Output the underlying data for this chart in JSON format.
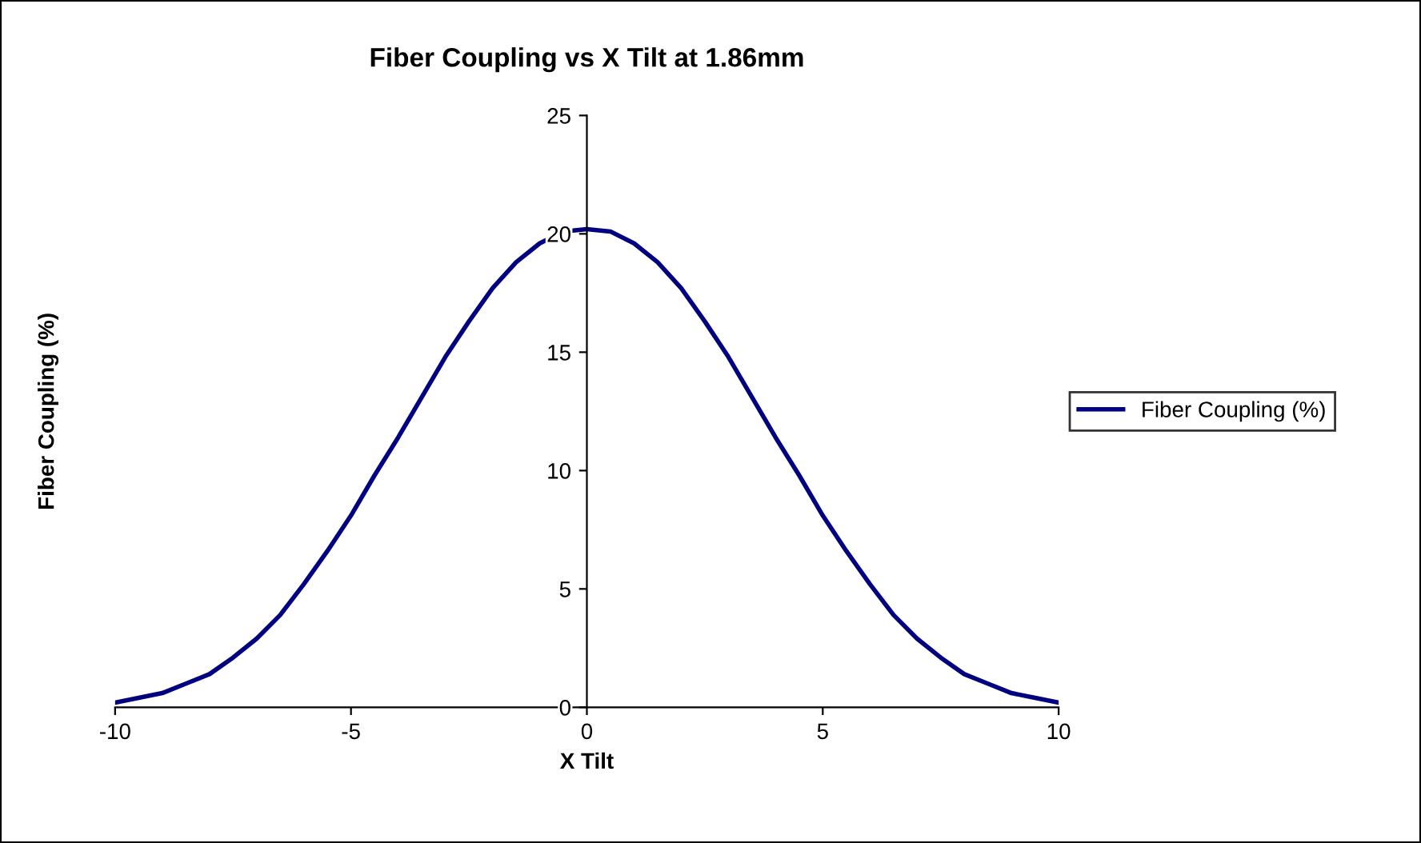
{
  "chart_data": {
    "type": "line",
    "title": "Fiber Coupling vs X Tilt at 1.86mm",
    "xlabel": "X Tilt",
    "ylabel": "Fiber Coupling (%)",
    "x": [
      -10,
      -9.5,
      -9,
      -8.5,
      -8,
      -7.5,
      -7,
      -6.5,
      -6,
      -5.5,
      -5,
      -4.5,
      -4,
      -3.5,
      -3,
      -2.5,
      -2,
      -1.5,
      -1,
      -0.5,
      0,
      0.5,
      1,
      1.5,
      2,
      2.5,
      3,
      3.5,
      4,
      4.5,
      5,
      5.5,
      6,
      6.5,
      7,
      7.5,
      8,
      8.5,
      9,
      9.5,
      10
    ],
    "series": [
      {
        "name": "Fiber Coupling (%)",
        "color": "#000080",
        "values": [
          0.2,
          0.4,
          0.6,
          1.0,
          1.4,
          2.1,
          2.9,
          3.9,
          5.2,
          6.6,
          8.1,
          9.8,
          11.4,
          13.1,
          14.8,
          16.3,
          17.7,
          18.8,
          19.6,
          20.1,
          20.2,
          20.1,
          19.6,
          18.8,
          17.7,
          16.3,
          14.8,
          13.1,
          11.4,
          9.8,
          8.1,
          6.6,
          5.2,
          3.9,
          2.9,
          2.1,
          1.4,
          1.0,
          0.6,
          0.4,
          0.2
        ]
      }
    ],
    "xlim": [
      -10,
      10
    ],
    "xticks": [
      -10,
      -5,
      0,
      5,
      10
    ],
    "ylim": [
      0,
      25
    ],
    "yticks": [
      0,
      5,
      10,
      15,
      20,
      25
    ],
    "grid": false,
    "legend": "right",
    "marker": "none",
    "line_style": "solid"
  }
}
